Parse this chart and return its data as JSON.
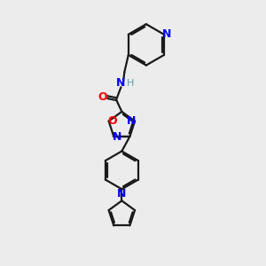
{
  "bg_color": "#ececec",
  "bond_color": "#1a1a1a",
  "N_color": "#0000ff",
  "O_color": "#ff0000",
  "H_color": "#5f9ea0",
  "line_width": 1.6,
  "figsize": [
    3.0,
    3.0
  ],
  "dpi": 100,
  "xlim": [
    0,
    10
  ],
  "ylim": [
    0,
    10
  ]
}
